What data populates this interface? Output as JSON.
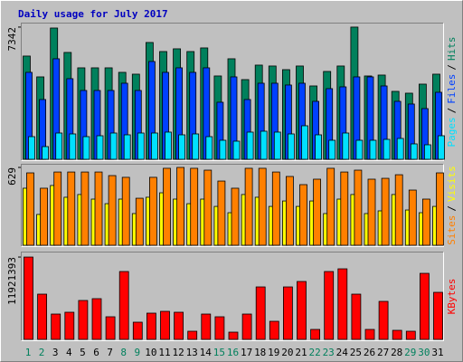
{
  "chart_data": {
    "type": "bar",
    "title": "Daily usage for July 2017",
    "legend_separator": "/",
    "categories": [
      "1",
      "2",
      "3",
      "4",
      "5",
      "6",
      "7",
      "8",
      "9",
      "10",
      "11",
      "12",
      "13",
      "14",
      "15",
      "16",
      "17",
      "18",
      "19",
      "20",
      "21",
      "22",
      "23",
      "24",
      "25",
      "26",
      "27",
      "28",
      "29",
      "30",
      "31"
    ],
    "weekend": [
      "1",
      "2",
      "8",
      "9",
      "15",
      "16",
      "22",
      "23",
      "29",
      "30"
    ],
    "weekend_color": "#00805c",
    "panels": [
      {
        "ylim": [
          0,
          7540
        ],
        "yticks": [
          7342
        ],
        "series": [
          {
            "name": "Hits",
            "color": "#00805c",
            "values": [
              5733,
              4576,
              7290,
              5934,
              5079,
              5079,
              5079,
              4828,
              4727,
              6487,
              5984,
              6135,
              5984,
              6185,
              4627,
              5582,
              4425,
              5230,
              5180,
              4978,
              5180,
              4073,
              4878,
              5180,
              7342,
              4627,
              4677,
              3772,
              3671,
              4174,
              4727
            ]
          },
          {
            "name": "Files",
            "color": "#0040ff",
            "values": [
              4828,
              3319,
              5582,
              4476,
              3822,
              3822,
              3822,
              4224,
              3822,
              5431,
              4828,
              5079,
              4828,
              5079,
              3168,
              4576,
              3319,
              4224,
              4224,
              4124,
              4224,
              3218,
              3923,
              4023,
              4576,
              4576,
              4073,
              3218,
              3068,
              2816,
              3721
            ]
          },
          {
            "name": "Pages",
            "color": "#00e0ff",
            "values": [
              1257,
              704,
              1458,
              1408,
              1257,
              1307,
              1458,
              1358,
              1458,
              1458,
              1509,
              1358,
              1408,
              1257,
              1056,
              1006,
              1509,
              1559,
              1509,
              1408,
              1861,
              1358,
              1056,
              1458,
              1056,
              1056,
              1106,
              1157,
              855,
              805,
              1307
            ]
          }
        ]
      },
      {
        "ylim": [
          0,
          651
        ],
        "yticks": [
          629
        ],
        "series": [
          {
            "name": "Visits",
            "color": "#ffff00",
            "values": [
              461,
              249,
              483,
              388,
              410,
              373,
              336,
              373,
              256,
              388,
              424,
              373,
              336,
              373,
              314,
              263,
              410,
              388,
              314,
              358,
              314,
              358,
              256,
              373,
              410,
              256,
              278,
              410,
              285,
              263,
              314
            ]
          },
          {
            "name": "Sites",
            "color": "#ff8000",
            "values": [
              585,
              461,
              592,
              592,
              592,
              592,
              563,
              549,
              380,
              549,
              622,
              629,
              622,
              607,
              519,
              461,
              622,
              622,
              592,
              556,
              490,
              534,
              622,
              592,
              607,
              534,
              541,
              570,
              446,
              373,
              585
            ]
          }
        ]
      },
      {
        "ylim": [
          0,
          12450000
        ],
        "yticks": [
          11921393
        ],
        "series": [
          {
            "name": "KBytes",
            "color": "#ff0000",
            "values": [
              11921393,
              6550000,
              3668000,
              3930000,
              5633000,
              5895000,
              3275000,
              9825000,
              2489000,
              3799000,
              4061000,
              3930000,
              1179000,
              3668000,
              3275000,
              1048000,
              3668000,
              7598000,
              2620000,
              7598000,
              8384000,
              1441000,
              9825000,
              10218000,
              6550000,
              1441000,
              5502000,
              1310000,
              1179000,
              9563000,
              6812000
            ]
          }
        ]
      }
    ]
  }
}
